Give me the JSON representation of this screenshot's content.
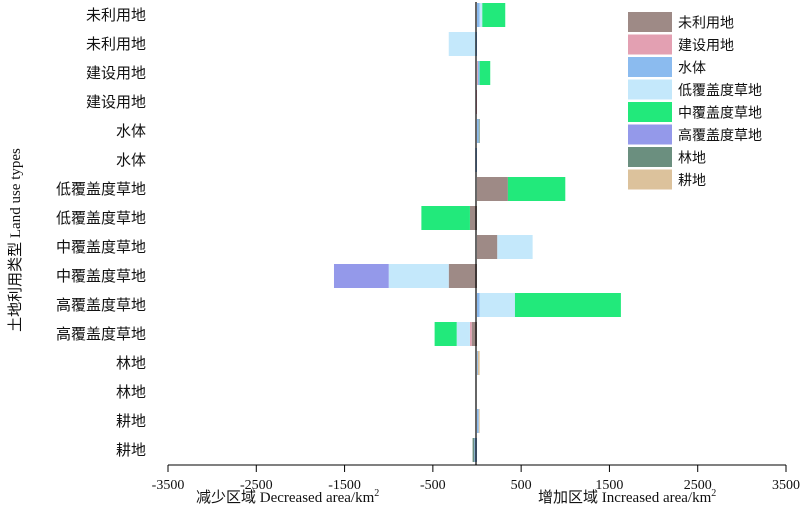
{
  "chart_data": {
    "type": "bar",
    "orientation": "horizontal",
    "stacked": true,
    "ylabel": "土地利用类型 Land use types",
    "xlabel_left": "减少区域 Decreased area/km",
    "xlabel_right": "增加区域 Increased area/km",
    "xlabel_sup": "2",
    "xlim": [
      -3500,
      3500
    ],
    "xticks": [
      "-3500",
      "-2500",
      "-1500",
      "-500",
      "500",
      "1500",
      "2500",
      "3500"
    ],
    "xtick_values": [
      -3500,
      -2500,
      -1500,
      -500,
      500,
      1500,
      2500,
      3500
    ],
    "grid": false,
    "legend_position": "top-right",
    "categories": [
      "未利用地",
      "未利用地",
      "建设用地",
      "建设用地",
      "水体",
      "水体",
      "低覆盖度草地",
      "低覆盖度草地",
      "中覆盖度草地",
      "中覆盖度草地",
      "高覆盖度草地",
      "高覆盖度草地",
      "林地",
      "林地",
      "耕地",
      "耕地"
    ],
    "series": [
      {
        "name": "未利用地",
        "color": "#9e8a86",
        "values": [
          0,
          0,
          0,
          0,
          0,
          0,
          350,
          -80,
          230,
          -320,
          0,
          -60,
          0,
          0,
          0,
          0
        ]
      },
      {
        "name": "建设用地",
        "color": "#e3a0b2",
        "values": [
          0,
          0,
          10,
          -10,
          0,
          0,
          0,
          0,
          0,
          0,
          0,
          -20,
          0,
          0,
          0,
          0
        ]
      },
      {
        "name": "水体",
        "color": "#8bbbef",
        "values": [
          30,
          -20,
          20,
          0,
          20,
          -20,
          0,
          0,
          0,
          0,
          30,
          0,
          10,
          0,
          20,
          -30
        ]
      },
      {
        "name": "低覆盖度草地",
        "color": "#c4e8fb",
        "values": [
          30,
          -300,
          0,
          0,
          0,
          0,
          0,
          0,
          400,
          -680,
          400,
          -150,
          0,
          0,
          0,
          0
        ]
      },
      {
        "name": "中覆盖度草地",
        "color": "#22e97b",
        "values": [
          260,
          0,
          120,
          0,
          0,
          0,
          650,
          -550,
          0,
          0,
          1200,
          -250,
          0,
          0,
          0,
          0
        ]
      },
      {
        "name": "高覆盖度草地",
        "color": "#9499ea",
        "values": [
          0,
          0,
          0,
          0,
          0,
          0,
          0,
          0,
          0,
          -620,
          0,
          0,
          0,
          0,
          0,
          0
        ]
      },
      {
        "name": "林地",
        "color": "#6b8f7f",
        "values": [
          0,
          0,
          0,
          0,
          10,
          0,
          0,
          0,
          0,
          0,
          0,
          0,
          0,
          0,
          0,
          -20
        ]
      },
      {
        "name": "耕地",
        "color": "#dcc29c",
        "values": [
          0,
          0,
          0,
          0,
          0,
          0,
          0,
          0,
          0,
          0,
          0,
          0,
          20,
          0,
          10,
          0
        ]
      }
    ]
  }
}
